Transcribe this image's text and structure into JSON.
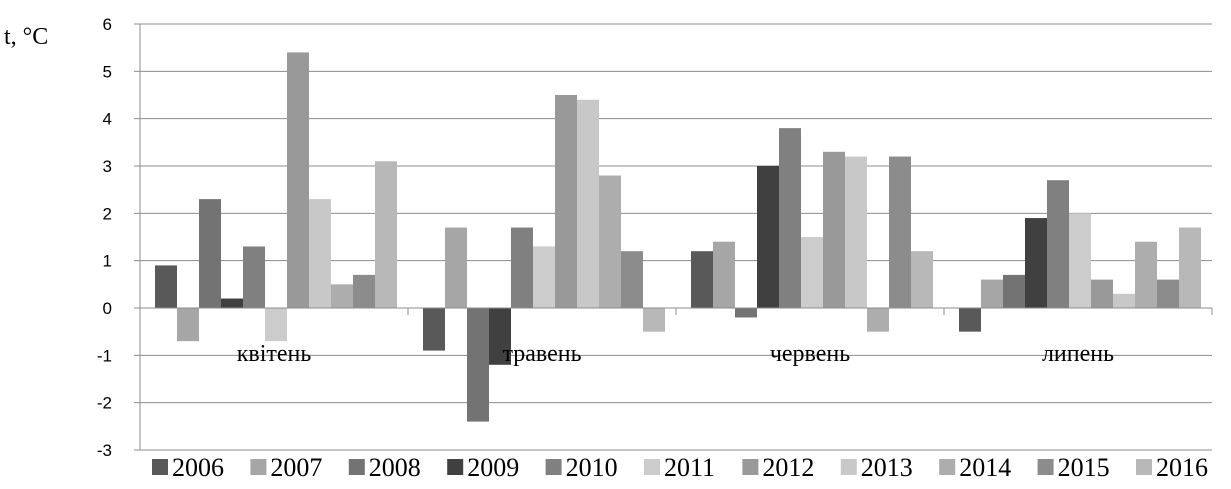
{
  "chart_data": {
    "type": "bar",
    "ylabel": "t,  °C",
    "ylim": [
      -3,
      6
    ],
    "yticks": [
      -3,
      -2,
      -1,
      0,
      1,
      2,
      3,
      4,
      5,
      6
    ],
    "grid": true,
    "legend_position": "bottom",
    "categories": [
      "квітень",
      "травень",
      "червень",
      "липень"
    ],
    "series": [
      {
        "name": "2006",
        "color": "#595959",
        "values": [
          0.9,
          -0.9,
          1.2,
          -0.5
        ]
      },
      {
        "name": "2007",
        "color": "#a6a6a6",
        "values": [
          -0.7,
          1.7,
          1.4,
          0.6
        ]
      },
      {
        "name": "2008",
        "color": "#737373",
        "values": [
          2.3,
          -2.4,
          -0.2,
          0.7
        ]
      },
      {
        "name": "2009",
        "color": "#404040",
        "values": [
          0.2,
          -1.2,
          3.0,
          1.9
        ]
      },
      {
        "name": "2010",
        "color": "#808080",
        "values": [
          1.3,
          1.7,
          3.8,
          2.7
        ]
      },
      {
        "name": "2011",
        "color": "#cccccc",
        "values": [
          -0.7,
          1.3,
          1.5,
          2.0
        ]
      },
      {
        "name": "2012",
        "color": "#999999",
        "values": [
          5.4,
          4.5,
          3.3,
          0.6
        ]
      },
      {
        "name": "2013",
        "color": "#c8c8c8",
        "values": [
          2.3,
          4.4,
          3.2,
          0.3
        ]
      },
      {
        "name": "2014",
        "color": "#adadad",
        "values": [
          0.5,
          2.8,
          -0.5,
          1.4
        ]
      },
      {
        "name": "2015",
        "color": "#8c8c8c",
        "values": [
          0.7,
          1.2,
          3.2,
          0.6
        ]
      },
      {
        "name": "2016",
        "color": "#b8b8b8",
        "values": [
          3.1,
          -0.5,
          1.2,
          1.7
        ]
      }
    ]
  }
}
